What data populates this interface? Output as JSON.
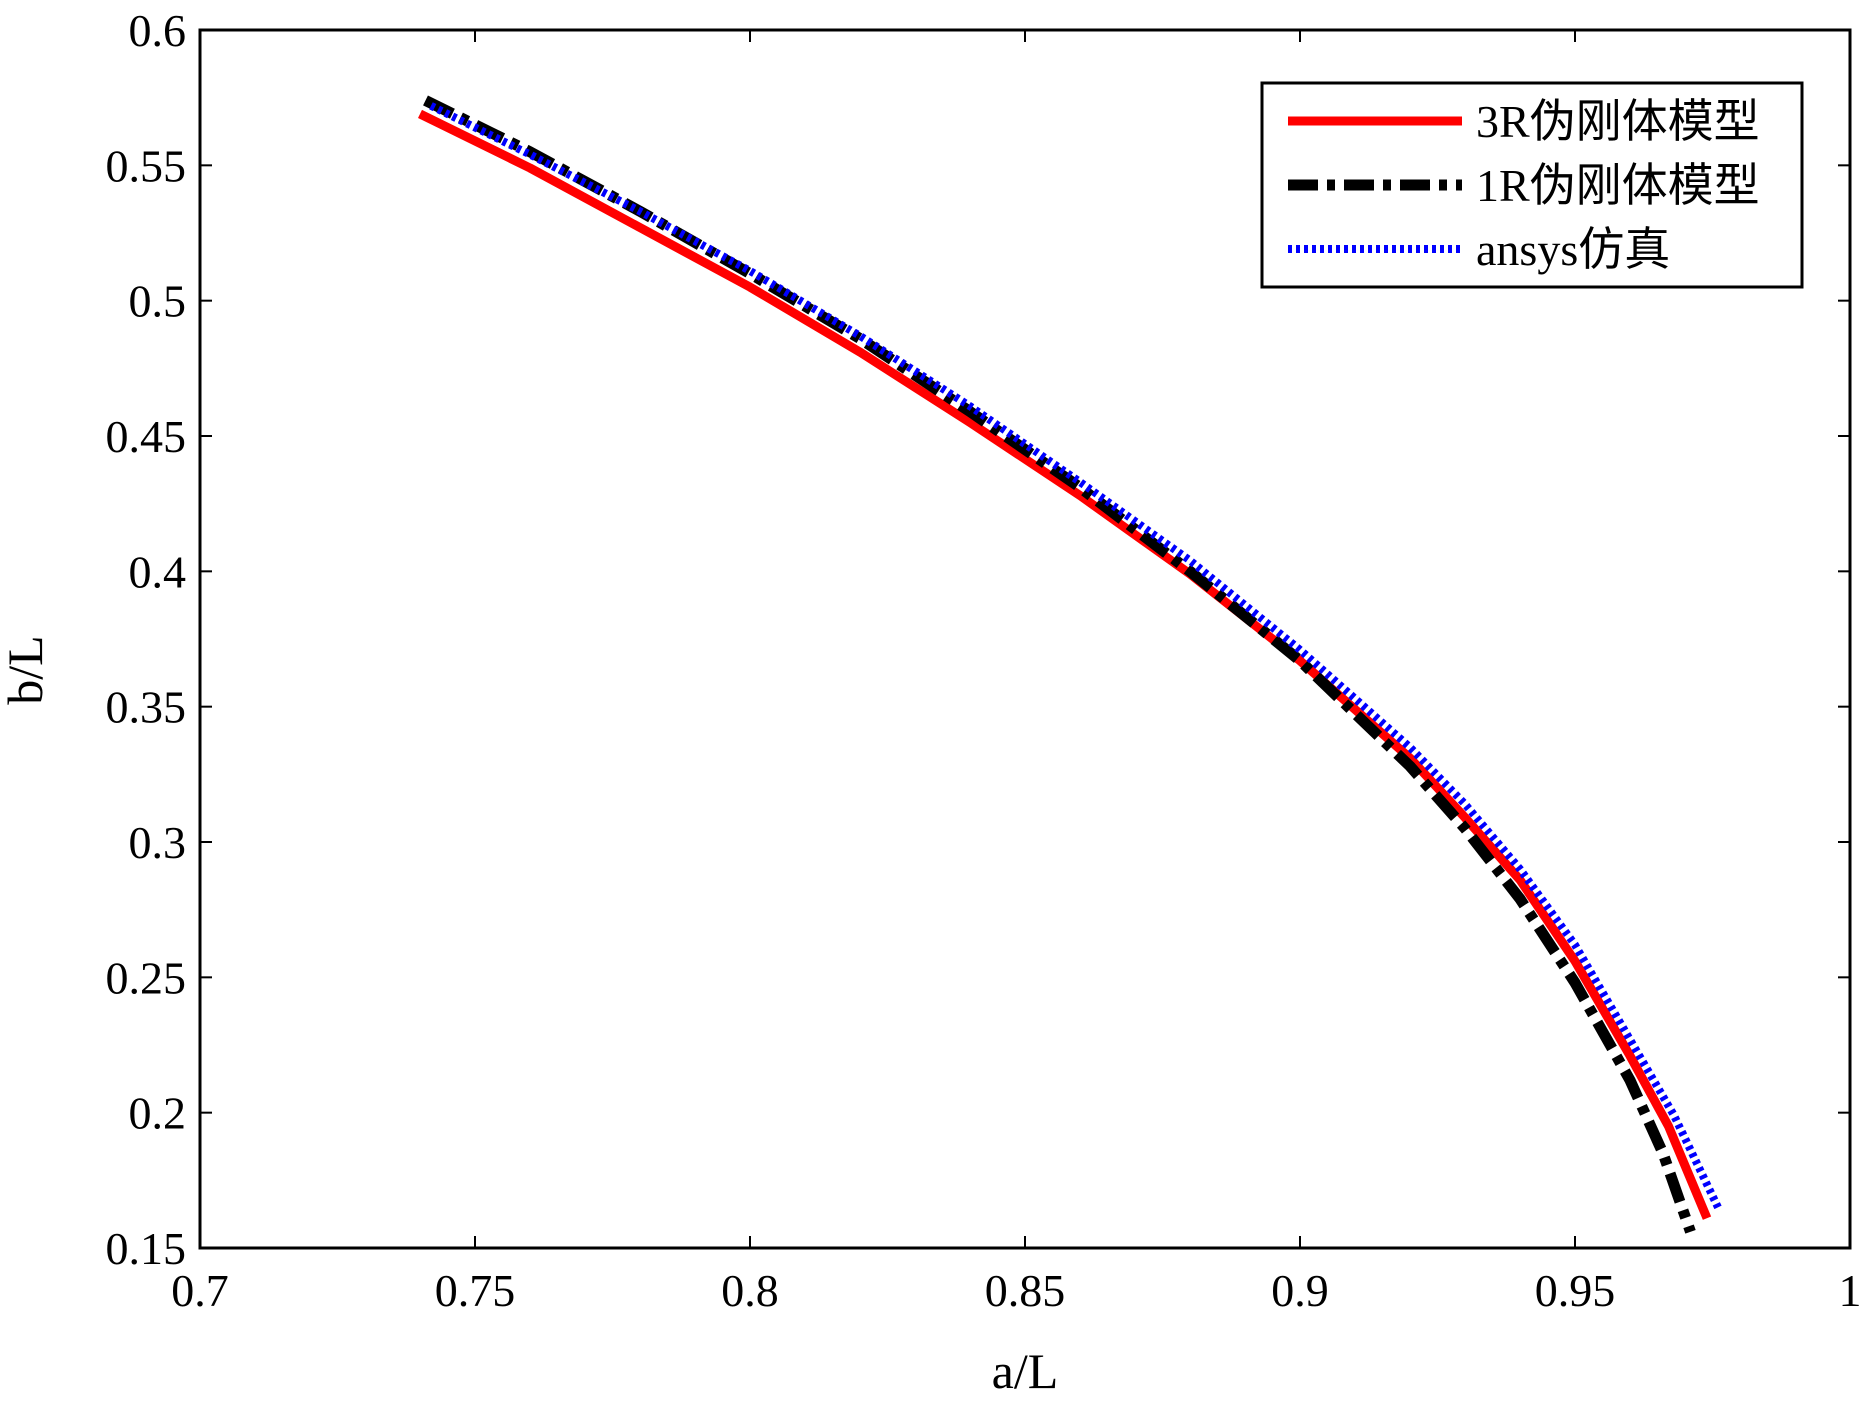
{
  "chart_data": {
    "type": "line",
    "title": "",
    "xlabel": "a/L",
    "ylabel": "b/L",
    "xlim": [
      0.7,
      1.0
    ],
    "ylim": [
      0.15,
      0.6
    ],
    "xticks": [
      0.7,
      0.75,
      0.8,
      0.85,
      0.9,
      0.95,
      1.0
    ],
    "xtick_labels": [
      "0.7",
      "0.75",
      "0.8",
      "0.85",
      "0.9",
      "0.95",
      "1"
    ],
    "yticks": [
      0.15,
      0.2,
      0.25,
      0.3,
      0.35,
      0.4,
      0.45,
      0.5,
      0.55,
      0.6
    ],
    "ytick_labels": [
      "0.15",
      "0.2",
      "0.25",
      "0.3",
      "0.35",
      "0.4",
      "0.45",
      "0.5",
      "0.55",
      "0.6"
    ],
    "grid": false,
    "legend_position": "top-right",
    "series": [
      {
        "name": "3R伪刚体模型",
        "color": "#ff0000",
        "style": "solid",
        "x": [
          0.74,
          0.76,
          0.78,
          0.8,
          0.82,
          0.84,
          0.86,
          0.88,
          0.9,
          0.92,
          0.93,
          0.94,
          0.95,
          0.96,
          0.967,
          0.974
        ],
        "y": [
          0.569,
          0.549,
          0.527,
          0.505,
          0.481,
          0.455,
          0.428,
          0.399,
          0.367,
          0.331,
          0.309,
          0.286,
          0.256,
          0.221,
          0.195,
          0.161
        ]
      },
      {
        "name": "1R伪刚体模型",
        "color": "#000000",
        "style": "dashdot",
        "x": [
          0.741,
          0.76,
          0.78,
          0.8,
          0.82,
          0.84,
          0.86,
          0.88,
          0.9,
          0.92,
          0.93,
          0.94,
          0.95,
          0.96,
          0.966,
          0.971
        ],
        "y": [
          0.574,
          0.555,
          0.533,
          0.51,
          0.486,
          0.459,
          0.431,
          0.4,
          0.367,
          0.328,
          0.305,
          0.279,
          0.248,
          0.212,
          0.185,
          0.156
        ]
      },
      {
        "name": "ansys仿真",
        "color": "#0000ff",
        "style": "dotted",
        "x": [
          0.742,
          0.76,
          0.78,
          0.8,
          0.82,
          0.84,
          0.86,
          0.88,
          0.9,
          0.92,
          0.93,
          0.94,
          0.95,
          0.96,
          0.968,
          0.976
        ],
        "y": [
          0.572,
          0.554,
          0.533,
          0.511,
          0.487,
          0.461,
          0.433,
          0.404,
          0.371,
          0.335,
          0.314,
          0.29,
          0.262,
          0.227,
          0.199,
          0.165
        ]
      }
    ]
  }
}
